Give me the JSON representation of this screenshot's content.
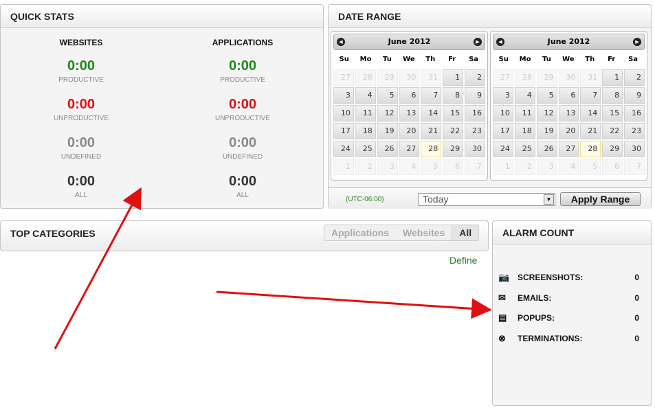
{
  "quick_stats": {
    "title": "QUICK STATS",
    "columns": [
      {
        "heading": "WEBSITES",
        "rows": [
          {
            "value": "0:00",
            "label": "PRODUCTIVE",
            "color": "#1a8a1a"
          },
          {
            "value": "0:00",
            "label": "UNPRODUCTIVE",
            "color": "#e01010"
          },
          {
            "value": "0:00",
            "label": "UNDEFINED",
            "color": "#888888"
          },
          {
            "value": "0:00",
            "label": "ALL",
            "color": "#333333"
          }
        ]
      },
      {
        "heading": "APPLICATIONS",
        "rows": [
          {
            "value": "0:00",
            "label": "PRODUCTIVE",
            "color": "#1a8a1a"
          },
          {
            "value": "0:00",
            "label": "UNPRODUCTIVE",
            "color": "#e01010"
          },
          {
            "value": "0:00",
            "label": "UNDEFINED",
            "color": "#888888"
          },
          {
            "value": "0:00",
            "label": "ALL",
            "color": "#333333"
          }
        ]
      }
    ]
  },
  "date_range": {
    "title": "DATE RANGE",
    "timezone": "(UTC-06:00)",
    "range_select": "Today",
    "apply_label": "Apply Range",
    "calendars": [
      {
        "month": "June 2012"
      },
      {
        "month": "June 2012"
      }
    ],
    "day_names": [
      "Su",
      "Mo",
      "Tu",
      "We",
      "Th",
      "Fr",
      "Sa"
    ],
    "days": [
      [
        "27",
        "28",
        "29",
        "30",
        "31",
        "1",
        "2"
      ],
      [
        "3",
        "4",
        "5",
        "6",
        "7",
        "8",
        "9"
      ],
      [
        "10",
        "11",
        "12",
        "13",
        "14",
        "15",
        "16"
      ],
      [
        "17",
        "18",
        "19",
        "20",
        "21",
        "22",
        "23"
      ],
      [
        "24",
        "25",
        "26",
        "27",
        "28",
        "29",
        "30"
      ],
      [
        "1",
        "2",
        "3",
        "4",
        "5",
        "6",
        "7"
      ]
    ],
    "today": "28"
  },
  "top_categories": {
    "title": "TOP CATEGORIES",
    "tabs": [
      "Applications",
      "Websites",
      "All"
    ],
    "active_tab": "All",
    "define_link": "Define"
  },
  "alarm_count": {
    "title": "ALARM COUNT",
    "items": [
      {
        "icon": "camera-icon",
        "label": "SCREENSHOTS:",
        "value": "0"
      },
      {
        "icon": "envelope-icon",
        "label": "EMAILS:",
        "value": "0"
      },
      {
        "icon": "popup-icon",
        "label": "POPUPS:",
        "value": "0"
      },
      {
        "icon": "terminate-icon",
        "label": "TERMINATIONS:",
        "value": "0"
      }
    ]
  },
  "annotation_color": "#e01010"
}
